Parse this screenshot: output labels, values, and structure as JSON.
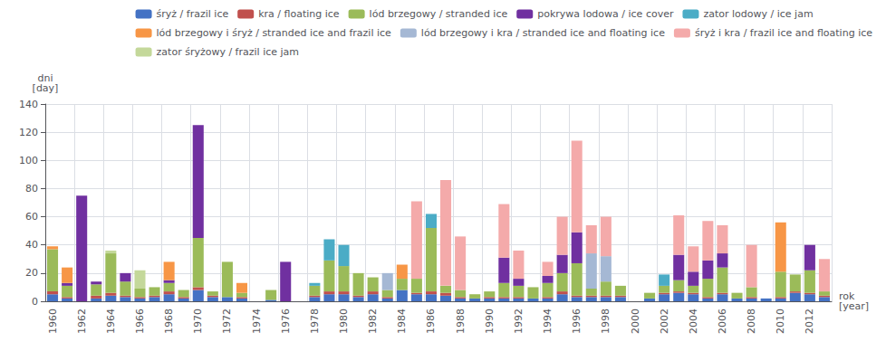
{
  "chart_data": {
    "type": "bar",
    "stacked": true,
    "x_label": "rok\n[year]",
    "y_label": "dni\n[day]",
    "categories": [
      "1960",
      null,
      "1962",
      null,
      "1964",
      null,
      "1966",
      null,
      "1968",
      null,
      "1970",
      null,
      "1972",
      null,
      "1974",
      null,
      "1976",
      null,
      "1978",
      null,
      "1980",
      null,
      "1982",
      null,
      "1984",
      null,
      "1986",
      null,
      "1988",
      null,
      "1990",
      null,
      "1992",
      null,
      "1994",
      null,
      "1996",
      null,
      "1998",
      null,
      "2000",
      null,
      "2002",
      null,
      "2004",
      null,
      "2006",
      null,
      "2008",
      null,
      "2010",
      null,
      "2012",
      null
    ],
    "series": [
      {
        "name": "śryż / frazil ice",
        "color": "#4472C4",
        "values": [
          5,
          2,
          0,
          2,
          4,
          3,
          2,
          3,
          5,
          2,
          8,
          3,
          3,
          2,
          0,
          1,
          0,
          0,
          3,
          5,
          5,
          3,
          5,
          2,
          8,
          5,
          5,
          4,
          2,
          2,
          2,
          2,
          2,
          2,
          2,
          5,
          3,
          3,
          3,
          3,
          0,
          2,
          5,
          6,
          5,
          2,
          5,
          2,
          2,
          2,
          2,
          6,
          5,
          3
        ]
      },
      {
        "name": "kra / floating ice",
        "color": "#C0504D",
        "values": [
          2,
          1,
          0,
          2,
          2,
          1,
          1,
          1,
          2,
          1,
          2,
          1,
          0,
          1,
          0,
          0,
          0,
          0,
          1,
          2,
          2,
          1,
          2,
          1,
          0,
          1,
          2,
          2,
          1,
          0,
          1,
          1,
          1,
          0,
          1,
          2,
          1,
          1,
          1,
          1,
          0,
          0,
          1,
          1,
          1,
          1,
          1,
          0,
          1,
          0,
          1,
          1,
          1,
          1
        ]
      },
      {
        "name": "lód brzegowy / stranded ice",
        "color": "#9BBB59",
        "values": [
          30,
          8,
          0,
          8,
          28,
          10,
          6,
          6,
          6,
          5,
          35,
          3,
          25,
          3,
          0,
          7,
          0,
          0,
          7,
          22,
          18,
          16,
          10,
          5,
          8,
          10,
          45,
          5,
          5,
          3,
          4,
          10,
          8,
          8,
          10,
          13,
          23,
          5,
          10,
          7,
          0,
          4,
          5,
          8,
          5,
          13,
          18,
          4,
          7,
          0,
          18,
          12,
          16,
          3
        ]
      },
      {
        "name": "pokrywa lodowa / ice cover",
        "color": "#7030A0",
        "values": [
          0,
          2,
          75,
          2,
          0,
          6,
          0,
          0,
          2,
          0,
          80,
          0,
          0,
          0,
          0,
          0,
          28,
          0,
          0,
          0,
          0,
          0,
          0,
          0,
          0,
          0,
          0,
          0,
          0,
          0,
          0,
          18,
          5,
          0,
          5,
          13,
          22,
          0,
          0,
          0,
          0,
          0,
          0,
          18,
          10,
          13,
          10,
          0,
          0,
          0,
          0,
          0,
          18,
          0
        ]
      },
      {
        "name": "zator lodowy / ice jam",
        "color": "#4BACC6",
        "values": [
          0,
          0,
          0,
          0,
          0,
          0,
          0,
          0,
          0,
          0,
          0,
          0,
          0,
          0,
          0,
          0,
          0,
          0,
          2,
          15,
          15,
          0,
          0,
          0,
          0,
          0,
          10,
          0,
          0,
          0,
          0,
          0,
          0,
          0,
          0,
          0,
          0,
          0,
          0,
          0,
          0,
          0,
          8,
          0,
          0,
          0,
          0,
          0,
          0,
          0,
          0,
          0,
          0,
          0
        ]
      },
      {
        "name": "lód brzegowy i śryż / stranded ice and frazil ice",
        "color": "#F79646",
        "values": [
          2,
          11,
          0,
          0,
          0,
          0,
          0,
          0,
          13,
          0,
          0,
          0,
          0,
          7,
          0,
          0,
          0,
          0,
          0,
          0,
          0,
          0,
          0,
          0,
          10,
          0,
          0,
          0,
          0,
          0,
          0,
          0,
          0,
          0,
          0,
          0,
          0,
          0,
          0,
          0,
          0,
          0,
          0,
          0,
          0,
          0,
          0,
          0,
          0,
          0,
          35,
          0,
          0,
          0
        ]
      },
      {
        "name": "lód brzegowy i kra / stranded ice and floating ice",
        "color": "#A5B8D4",
        "values": [
          0,
          0,
          0,
          0,
          0,
          0,
          0,
          0,
          0,
          0,
          0,
          0,
          0,
          0,
          0,
          0,
          0,
          0,
          0,
          0,
          0,
          0,
          0,
          12,
          0,
          0,
          0,
          0,
          0,
          0,
          0,
          0,
          0,
          0,
          0,
          0,
          0,
          25,
          18,
          0,
          0,
          0,
          0,
          0,
          0,
          0,
          0,
          0,
          0,
          0,
          0,
          0,
          0,
          0
        ]
      },
      {
        "name": "śryż i kra / frazil ice and floating ice",
        "color": "#F4AAAA",
        "values": [
          0,
          0,
          0,
          0,
          0,
          0,
          0,
          0,
          0,
          0,
          0,
          0,
          0,
          0,
          0,
          0,
          0,
          0,
          0,
          0,
          0,
          0,
          0,
          0,
          0,
          55,
          0,
          75,
          38,
          0,
          0,
          38,
          20,
          0,
          10,
          27,
          65,
          20,
          28,
          0,
          0,
          0,
          0,
          28,
          18,
          28,
          20,
          0,
          30,
          0,
          0,
          0,
          0,
          23
        ]
      },
      {
        "name": "zator śryżowy / frazil ice jam",
        "color": "#C4D89A",
        "values": [
          0,
          0,
          0,
          0,
          2,
          0,
          13,
          0,
          0,
          0,
          0,
          0,
          0,
          0,
          0,
          0,
          0,
          0,
          0,
          0,
          0,
          0,
          0,
          0,
          0,
          0,
          0,
          0,
          0,
          0,
          0,
          0,
          0,
          0,
          0,
          0,
          0,
          0,
          0,
          0,
          0,
          0,
          0,
          0,
          0,
          0,
          0,
          0,
          0,
          0,
          0,
          0,
          0,
          0
        ]
      }
    ],
    "ylim": [
      0,
      140
    ],
    "yticks": [
      0,
      20,
      40,
      60,
      80,
      100,
      120,
      140
    ],
    "grid": true,
    "legend": "upper right"
  }
}
